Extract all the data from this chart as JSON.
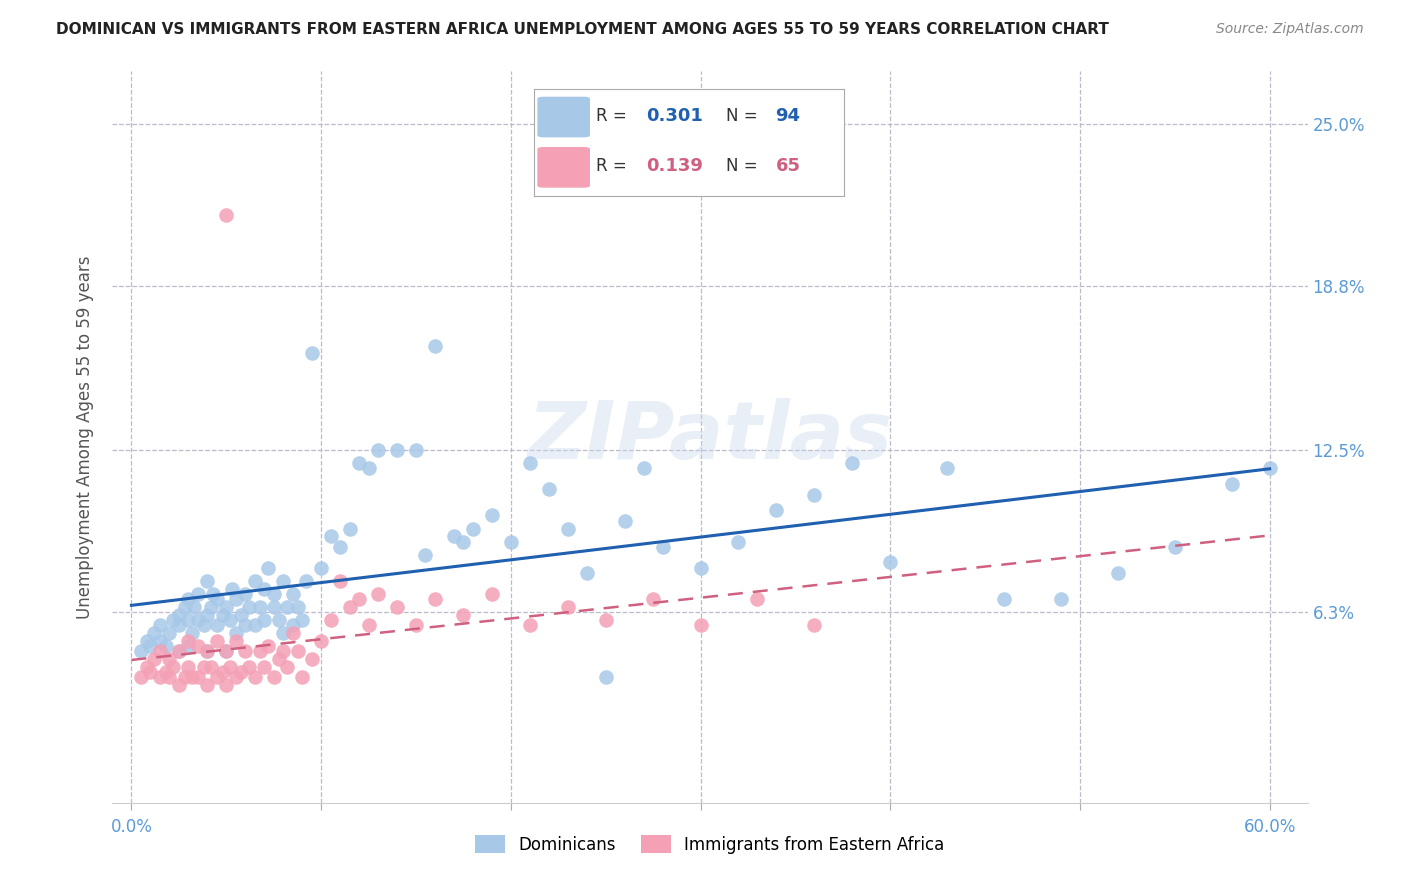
{
  "title": "DOMINICAN VS IMMIGRANTS FROM EASTERN AFRICA UNEMPLOYMENT AMONG AGES 55 TO 59 YEARS CORRELATION CHART",
  "source": "Source: ZipAtlas.com",
  "xlabel_vals": [
    0.0,
    0.1,
    0.2,
    0.3,
    0.4,
    0.5,
    0.6
  ],
  "xlabel_ticks": [
    "0.0%",
    "",
    "",
    "",
    "",
    "",
    "60.0%"
  ],
  "right_ytick_vals": [
    0.063,
    0.125,
    0.188,
    0.25
  ],
  "right_ytick_labels": [
    "6.3%",
    "12.5%",
    "18.8%",
    "25.0%"
  ],
  "xlim": [
    -0.01,
    0.62
  ],
  "ylim": [
    -0.01,
    0.27
  ],
  "legend1_r": "0.301",
  "legend1_n": "94",
  "legend2_r": "0.139",
  "legend2_n": "65",
  "dominicans_color": "#A8C8E8",
  "eastern_africa_color": "#F4A0B5",
  "trendline_dominicans_color": "#2060B0",
  "trendline_eastern_color": "#D06080",
  "background_color": "#FFFFFF",
  "grid_color": "#BBBBCC",
  "ylabel": "Unemployment Among Ages 55 to 59 years",
  "legend_label1": "Dominicans",
  "legend_label2": "Immigrants from Eastern Africa",
  "title_color": "#222222",
  "axis_tick_color": "#5B9BD5",
  "watermark": "ZIPatlas",
  "dominicans_x": [
    0.005,
    0.008,
    0.01,
    0.012,
    0.015,
    0.015,
    0.018,
    0.02,
    0.022,
    0.025,
    0.025,
    0.025,
    0.028,
    0.03,
    0.03,
    0.03,
    0.032,
    0.033,
    0.035,
    0.035,
    0.038,
    0.04,
    0.04,
    0.04,
    0.042,
    0.043,
    0.045,
    0.045,
    0.048,
    0.05,
    0.05,
    0.052,
    0.053,
    0.055,
    0.055,
    0.058,
    0.06,
    0.06,
    0.062,
    0.065,
    0.065,
    0.068,
    0.07,
    0.07,
    0.072,
    0.075,
    0.075,
    0.078,
    0.08,
    0.08,
    0.082,
    0.085,
    0.085,
    0.088,
    0.09,
    0.092,
    0.095,
    0.1,
    0.105,
    0.11,
    0.115,
    0.12,
    0.125,
    0.13,
    0.14,
    0.15,
    0.155,
    0.16,
    0.17,
    0.175,
    0.18,
    0.19,
    0.2,
    0.21,
    0.22,
    0.23,
    0.24,
    0.25,
    0.26,
    0.27,
    0.28,
    0.3,
    0.32,
    0.34,
    0.36,
    0.38,
    0.4,
    0.43,
    0.46,
    0.49,
    0.52,
    0.55,
    0.58,
    0.6
  ],
  "dominicans_y": [
    0.048,
    0.052,
    0.05,
    0.055,
    0.052,
    0.058,
    0.05,
    0.055,
    0.06,
    0.048,
    0.058,
    0.062,
    0.065,
    0.05,
    0.06,
    0.068,
    0.055,
    0.065,
    0.06,
    0.07,
    0.058,
    0.048,
    0.062,
    0.075,
    0.065,
    0.07,
    0.058,
    0.068,
    0.062,
    0.048,
    0.065,
    0.06,
    0.072,
    0.055,
    0.068,
    0.062,
    0.058,
    0.07,
    0.065,
    0.075,
    0.058,
    0.065,
    0.06,
    0.072,
    0.08,
    0.065,
    0.07,
    0.06,
    0.055,
    0.075,
    0.065,
    0.058,
    0.07,
    0.065,
    0.06,
    0.075,
    0.162,
    0.08,
    0.092,
    0.088,
    0.095,
    0.12,
    0.118,
    0.125,
    0.125,
    0.125,
    0.085,
    0.165,
    0.092,
    0.09,
    0.095,
    0.1,
    0.09,
    0.12,
    0.11,
    0.095,
    0.078,
    0.038,
    0.098,
    0.118,
    0.088,
    0.08,
    0.09,
    0.102,
    0.108,
    0.12,
    0.082,
    0.118,
    0.068,
    0.068,
    0.078,
    0.088,
    0.112,
    0.118
  ],
  "eastern_x": [
    0.005,
    0.008,
    0.01,
    0.012,
    0.015,
    0.015,
    0.018,
    0.02,
    0.02,
    0.022,
    0.025,
    0.025,
    0.028,
    0.03,
    0.03,
    0.032,
    0.035,
    0.035,
    0.038,
    0.04,
    0.04,
    0.042,
    0.045,
    0.045,
    0.048,
    0.05,
    0.05,
    0.052,
    0.055,
    0.055,
    0.058,
    0.06,
    0.062,
    0.065,
    0.068,
    0.07,
    0.072,
    0.075,
    0.078,
    0.08,
    0.082,
    0.085,
    0.088,
    0.09,
    0.095,
    0.1,
    0.105,
    0.11,
    0.115,
    0.12,
    0.125,
    0.13,
    0.14,
    0.15,
    0.16,
    0.175,
    0.19,
    0.21,
    0.23,
    0.25,
    0.275,
    0.3,
    0.33,
    0.36,
    0.05
  ],
  "eastern_y": [
    0.038,
    0.042,
    0.04,
    0.045,
    0.038,
    0.048,
    0.04,
    0.038,
    0.045,
    0.042,
    0.035,
    0.048,
    0.038,
    0.042,
    0.052,
    0.038,
    0.038,
    0.05,
    0.042,
    0.035,
    0.048,
    0.042,
    0.038,
    0.052,
    0.04,
    0.035,
    0.048,
    0.042,
    0.038,
    0.052,
    0.04,
    0.048,
    0.042,
    0.038,
    0.048,
    0.042,
    0.05,
    0.038,
    0.045,
    0.048,
    0.042,
    0.055,
    0.048,
    0.038,
    0.045,
    0.052,
    0.06,
    0.075,
    0.065,
    0.068,
    0.058,
    0.07,
    0.065,
    0.058,
    0.068,
    0.062,
    0.07,
    0.058,
    0.065,
    0.06,
    0.068,
    0.058,
    0.068,
    0.058,
    0.215
  ]
}
